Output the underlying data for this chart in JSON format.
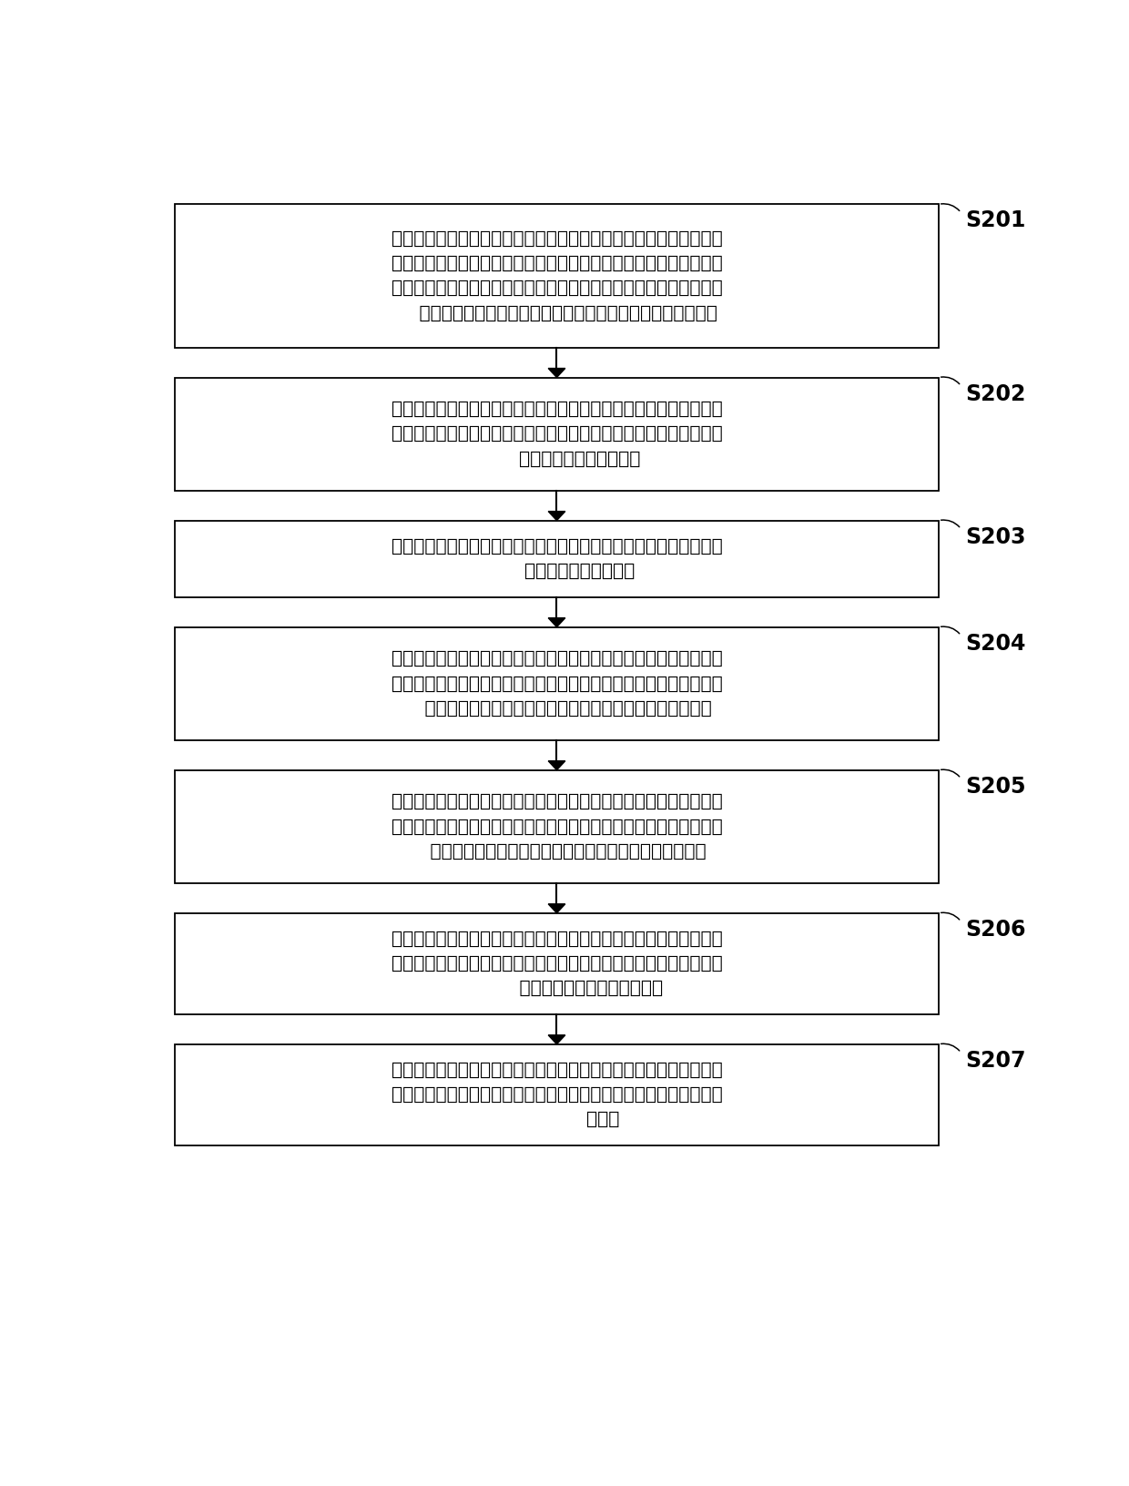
{
  "background_color": "#ffffff",
  "box_border_color": "#000000",
  "box_fill_color": "#ffffff",
  "arrow_color": "#000000",
  "label_color": "#000000",
  "font_size": 14.5,
  "label_font_size": 17,
  "steps": [
    {
      "id": "S201",
      "text": "当驱动系统工作时，整车控制器根据驾驶员的意图，以及当前动力电\n池、驱动电机的运行状态，确定整车的动力性能需求，电机控制接收\n转速和扭矩指令并进行解析，输出预设频率和幅值的三相电流，控制\n    驱动电机运行在不同的工况点，满足当前整车的动力性能需求"
    },
    {
      "id": "S202",
      "text": "当上装系统不工作时，上装系统处于卸荷状态，增程器系统处于发电\n模式时，自动离合器结合，发电机处于发电状态，与动力电池并联，\n        为整车驱动系统提供电源"
    },
    {
      "id": "S203",
      "text": "当上装系统工作时，增程器系统的输出轴驱动上装系统，产生液压力\n        ，为上装系统提供动力"
    },
    {
      "id": "S204",
      "text": "当上装系统处于纯电动驱动模式时，若动力电池的剩余电量大于第一\n设定值，则整车控制通过控制自动离合器控制器，使得自动离合器处\n    于分离状态，发电机驱动上装系统，为上装系统提供液压能"
    },
    {
      "id": "S205",
      "text": "当上装系统处于并联驱动模式时，若动力电池的剩余电量大于第二设\n定值，且小于第一设定值时，自动离合器处于结合状态，发动机和发\n    电机共同驱动，增程器系统可提供上装系统最大需求功率"
    },
    {
      "id": "S206",
      "text": "当上装系统处于发动机驱动模式时，若动力电池的剩余电量大于第三\n设定值，且小于第二设定值时，自动离合器处于结合状态，发电机空\n            转，增程器系统驱动上装系统"
    },
    {
      "id": "S207",
      "text": "当上装系统处于发电驱动模式时，若动力电池的剩余电量小于第三设\n定值时，自动离合器闭合，发电机处于发电状态，增程器系统驱动上\n                装系统"
    }
  ]
}
